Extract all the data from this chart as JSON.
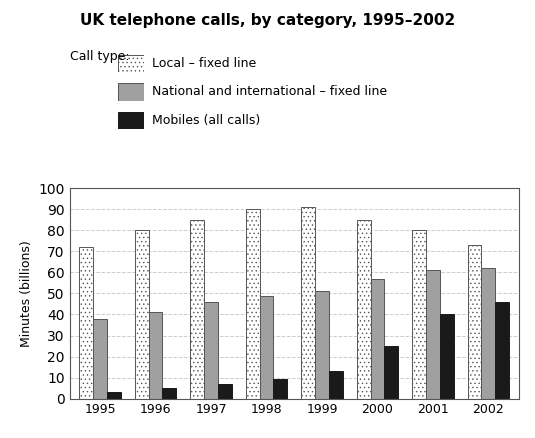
{
  "title": "UK telephone calls, by category, 1995–2002",
  "ylabel": "Minutes (billions)",
  "years": [
    1995,
    1996,
    1997,
    1998,
    1999,
    2000,
    2001,
    2002
  ],
  "local_fixed": [
    72,
    80,
    85,
    90,
    91,
    85,
    80,
    73
  ],
  "national_fixed": [
    38,
    41,
    46,
    49,
    51,
    57,
    61,
    62
  ],
  "mobiles": [
    3,
    5,
    7,
    9.5,
    13,
    25,
    40,
    46
  ],
  "ylim": [
    0,
    100
  ],
  "yticks": [
    0,
    10,
    20,
    30,
    40,
    50,
    60,
    70,
    80,
    90,
    100
  ],
  "legend_labels": [
    "Local – fixed line",
    "National and international – fixed line",
    "Mobiles (all calls)"
  ],
  "legend_title": "Call type:",
  "bar_width": 0.25
}
